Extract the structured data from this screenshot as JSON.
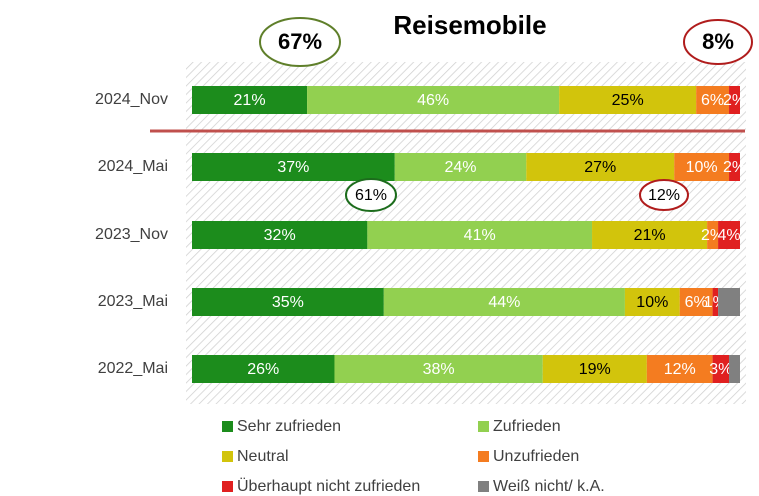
{
  "chart_data": {
    "type": "stacked-bar-horizontal",
    "title": "Reisemobile",
    "categories": [
      "2024_Nov",
      "2024_Mai",
      "2023_Nov",
      "2023_Mai",
      "2022_Mai"
    ],
    "xlim": [
      0,
      100
    ],
    "series": [
      {
        "name": "Sehr zufrieden",
        "color": "#1c8c1c",
        "label_color": "#ffffff",
        "values": [
          21,
          37,
          32,
          35,
          26
        ],
        "value_labels": [
          "21%",
          "37%",
          "32%",
          "35%",
          "26%"
        ]
      },
      {
        "name": "Zufrieden",
        "color": "#92d050",
        "label_color": "#ffffff",
        "values": [
          46,
          24,
          41,
          44,
          38
        ],
        "value_labels": [
          "46%",
          "24%",
          "41%",
          "44%",
          "38%"
        ]
      },
      {
        "name": "Neutral",
        "color": "#d2c40c",
        "label_color": "#000000",
        "values": [
          25,
          27,
          21,
          10,
          19
        ],
        "value_labels": [
          "25%",
          "27%",
          "21%",
          "10%",
          "19%"
        ]
      },
      {
        "name": "Unzufrieden",
        "color": "#f47c20",
        "label_color": "#ffffff",
        "values": [
          6,
          10,
          2,
          6,
          12
        ],
        "value_labels": [
          "6%",
          "10%",
          "2%",
          "6%",
          "12%"
        ]
      },
      {
        "name": "Überhaupt nicht zufrieden",
        "color": "#e02020",
        "label_color": "#ffffff",
        "values": [
          2,
          2,
          4,
          1,
          3
        ],
        "value_labels": [
          "2%",
          "2%",
          "4%",
          "1%",
          "3%"
        ]
      },
      {
        "name": "Weiß nicht/ k.A.",
        "color": "#808080",
        "label_color": "#ffffff",
        "values": [
          null,
          null,
          null,
          4,
          2
        ],
        "value_labels": [
          null,
          null,
          null,
          null,
          null
        ]
      }
    ],
    "annotations": [
      {
        "text": "67%",
        "color": "#5f7f2a"
      },
      {
        "text": "8%",
        "color": "#b01c1c"
      },
      {
        "text": "61%",
        "color": "#1c6c1c"
      },
      {
        "text": "12%",
        "color": "#b01c1c"
      }
    ]
  }
}
